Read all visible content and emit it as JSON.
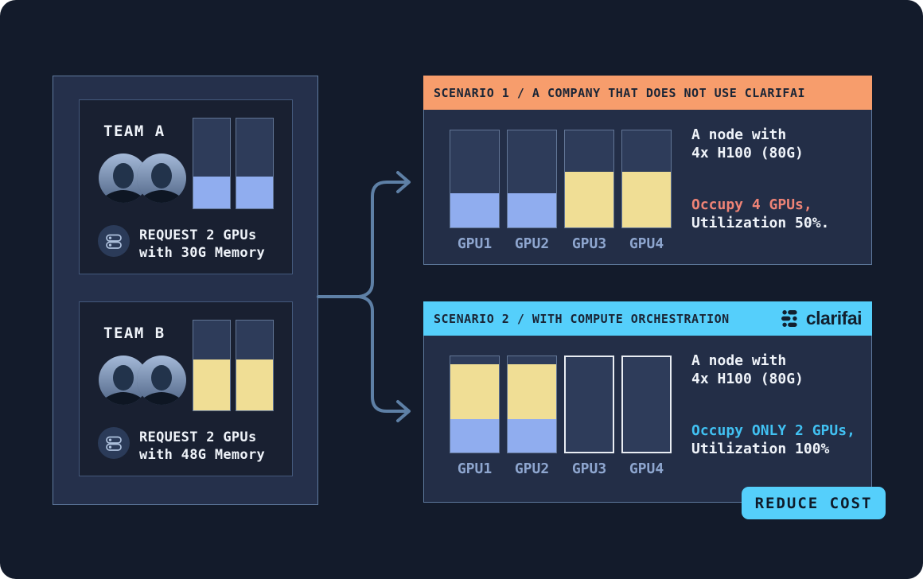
{
  "colors": {
    "page_bg": "#131B2B",
    "panel_bg": "#25304B",
    "card_bg": "#192031",
    "scenario_bg": "#232E47",
    "gpu_free": "#2E3C5A",
    "gpu_blue": "#90ADEF",
    "gpu_yellow": "#F0DE95",
    "scenario1_header_bg": "#F79D6C",
    "scenario2_header_bg": "#55CFFB",
    "occupy1_text": "#EF8376",
    "occupy2_text": "#41C1F2",
    "arrow": "#5E80A6",
    "badge_bg": "#55CFFB"
  },
  "icons": {
    "team_members": "two-users-avatar-icon",
    "request": "server-stack-icon",
    "logo": "clarifai-logo-icon",
    "arrow": "branch-arrow"
  },
  "teams_panel": {
    "teams": [
      {
        "name": "TEAM A",
        "request": [
          "REQUEST 2 GPUs",
          "with 30G Memory"
        ],
        "bars": [
          {
            "segments": [
              {
                "color": "#90ADEF",
                "pct": 35,
                "mem": "30G"
              }
            ]
          },
          {
            "segments": [
              {
                "color": "#90ADEF",
                "pct": 35,
                "mem": "30G"
              }
            ]
          }
        ]
      },
      {
        "name": "TEAM B",
        "request": [
          "REQUEST 2 GPUs",
          "with 48G Memory"
        ],
        "bars": [
          {
            "segments": [
              {
                "color": "#F0DE95",
                "pct": 57,
                "mem": "48G"
              }
            ]
          },
          {
            "segments": [
              {
                "color": "#F0DE95",
                "pct": 57,
                "mem": "48G"
              }
            ]
          }
        ]
      }
    ]
  },
  "scenario1": {
    "title": "SCENARIO 1 / A COMPANY THAT DOES NOT USE CLARIFAI",
    "node": [
      "A node with",
      "4x H100 (80G)"
    ],
    "occupy": "Occupy 4 GPUs,",
    "utilization": "Utilization 50%.",
    "gpus": [
      {
        "label": "GPU1",
        "segments": [
          {
            "color": "#90ADEF",
            "pct": 35,
            "mem": "30G"
          }
        ]
      },
      {
        "label": "GPU2",
        "segments": [
          {
            "color": "#90ADEF",
            "pct": 35,
            "mem": "30G"
          }
        ]
      },
      {
        "label": "GPU3",
        "segments": [
          {
            "color": "#F0DE95",
            "pct": 57,
            "mem": "48G"
          }
        ]
      },
      {
        "label": "GPU4",
        "segments": [
          {
            "color": "#F0DE95",
            "pct": 57,
            "mem": "48G"
          }
        ]
      }
    ]
  },
  "scenario2": {
    "title": "SCENARIO 2 / WITH COMPUTE ORCHESTRATION",
    "logo_text": "clarifai",
    "node": [
      "A node with",
      "4x H100 (80G)"
    ],
    "occupy": "Occupy ONLY 2 GPUs,",
    "utilization": "Utilization 100%",
    "gpus": [
      {
        "label": "GPU1",
        "segments": [
          {
            "color": "#90ADEF",
            "pct": 35,
            "mem": "30G"
          },
          {
            "color": "#F0DE95",
            "pct": 57,
            "mem": "48G"
          }
        ]
      },
      {
        "label": "GPU2",
        "segments": [
          {
            "color": "#90ADEF",
            "pct": 35,
            "mem": "30G"
          },
          {
            "color": "#F0DE95",
            "pct": 57,
            "mem": "48G"
          }
        ]
      },
      {
        "label": "GPU3",
        "segments": [],
        "empty": true
      },
      {
        "label": "GPU4",
        "segments": [],
        "empty": true
      }
    ]
  },
  "badge": {
    "label": "REDUCE COST"
  }
}
